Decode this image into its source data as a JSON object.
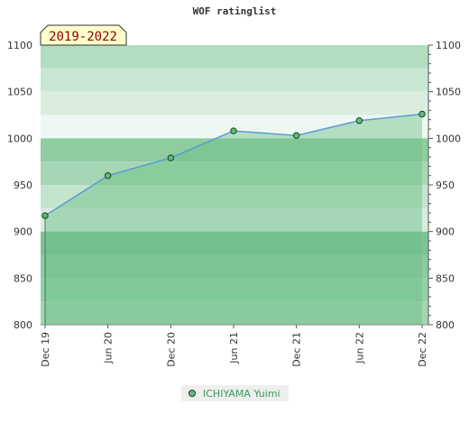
{
  "chart_data": {
    "type": "area",
    "title": "WOF ratinglist",
    "badge": "2019-2022",
    "y_ticks": [
      800,
      850,
      900,
      950,
      1000,
      1050,
      1100
    ],
    "ylim": [
      800,
      1100
    ],
    "x_ticks": [
      "Dec 19",
      "Jun 20",
      "Dec 20",
      "Jun 21",
      "Dec 21",
      "Jun 22",
      "Dec 22"
    ],
    "series": [
      {
        "name": "ICHIYAMA Yuimi",
        "values": [
          917,
          960,
          979,
          1008,
          1003,
          1019,
          1026
        ]
      }
    ],
    "legend_position": "bottom-center",
    "colors": {
      "line": "#5a9bd5",
      "fill": "#6bbf86",
      "marker": "#5fbf7a",
      "band_dark": "#8fcca0",
      "band_light": "#e4f2e8"
    }
  }
}
